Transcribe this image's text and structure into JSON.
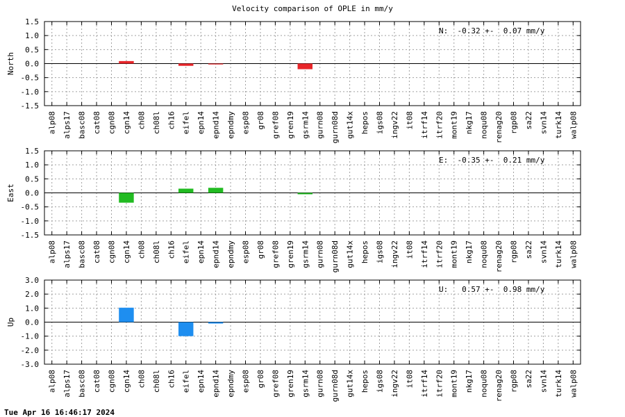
{
  "title": "Velocity comparison of OPLE in mm/y",
  "timestamp": "Tue Apr 16 16:46:17 2024",
  "chart_data": {
    "type": "bar",
    "categories": [
      "alp08",
      "alps17",
      "basc08",
      "cat08",
      "cgn08",
      "cgn14",
      "ch08",
      "ch08l",
      "ch16",
      "eifel",
      "epn14",
      "epnd14",
      "epndmy",
      "esp08",
      "gr08",
      "gref08",
      "gren19",
      "gsrm14",
      "gurn08",
      "gurn08d",
      "gut14x",
      "hepos",
      "igs08",
      "ingv22",
      "it08",
      "itrf14",
      "itrf20",
      "mont19",
      "nkg17",
      "noqu08",
      "renag20",
      "rgp08",
      "sa22",
      "svn14",
      "turk14",
      "walp08"
    ],
    "panels": [
      {
        "ylabel": "North",
        "color": "#e8262a",
        "ylim": [
          -1.5,
          1.5
        ],
        "yticks": [
          -1.5,
          -1.0,
          -0.5,
          0.0,
          0.5,
          1.0,
          1.5
        ],
        "ytick_labels": [
          "-1.5",
          "-1.0",
          "-0.5",
          "0.0",
          "0.5",
          "1.0",
          "1.5"
        ],
        "annotation": "N:  -0.32 +-  0.07 mm/y",
        "values": [
          0,
          0,
          0,
          0,
          0,
          0.09,
          0,
          0,
          0,
          -0.08,
          0,
          -0.03,
          0,
          0,
          0,
          0,
          0,
          -0.2,
          0,
          0,
          0,
          0,
          0,
          0,
          0,
          0,
          0,
          0,
          0,
          0,
          0,
          0,
          0,
          0,
          0,
          0
        ]
      },
      {
        "ylabel": "East",
        "color": "#22bb22",
        "ylim": [
          -1.5,
          1.5
        ],
        "yticks": [
          -1.5,
          -1.0,
          -0.5,
          0.0,
          0.5,
          1.0,
          1.5
        ],
        "ytick_labels": [
          "-1.5",
          "-1.0",
          "-0.5",
          "0.0",
          "0.5",
          "1.0",
          "1.5"
        ],
        "annotation": "E:  -0.35 +-  0.21 mm/y",
        "values": [
          0,
          0,
          0,
          0,
          0,
          -0.35,
          0,
          0,
          0,
          0.15,
          0,
          0.18,
          0,
          0,
          0,
          0,
          0,
          -0.05,
          0,
          0,
          0,
          0,
          0,
          0,
          0,
          0,
          0,
          0,
          0,
          0,
          0,
          0,
          0,
          0,
          0,
          0
        ]
      },
      {
        "ylabel": "Up",
        "color": "#1e8ef0",
        "ylim": [
          -3.0,
          3.0
        ],
        "yticks": [
          -3.0,
          -2.0,
          -1.0,
          0.0,
          1.0,
          2.0,
          3.0
        ],
        "ytick_labels": [
          "-3.0",
          "-2.0",
          "-1.0",
          "0.0",
          "1.0",
          "2.0",
          "3.0"
        ],
        "annotation": "U:   0.57 +-  0.98 mm/y",
        "values": [
          0,
          0,
          0,
          0,
          0,
          1.03,
          0,
          0,
          0,
          -1.0,
          0,
          -0.1,
          0,
          0,
          0,
          0,
          0,
          0,
          0,
          0,
          0,
          0,
          0,
          0,
          0,
          0,
          0,
          0,
          0,
          0,
          0,
          0,
          0,
          0,
          0,
          0
        ]
      }
    ]
  }
}
